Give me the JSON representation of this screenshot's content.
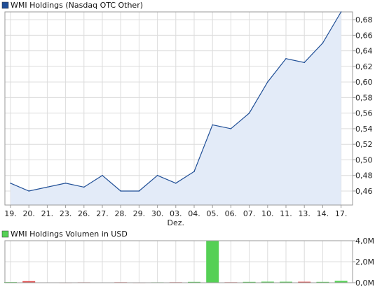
{
  "colors": {
    "price_line": "#1f4e96",
    "price_fill": "#e3ebf8",
    "price_legend": "#1f4e96",
    "volume_legend": "#55d055",
    "volume_up": "#55d055",
    "volume_down": "#e05050",
    "grid": "#dcdcdc",
    "frame": "#999999"
  },
  "chart_data": [
    {
      "type": "area",
      "legend": "WMI Holdings (Nasdaq OTC Other)",
      "x_ticks": [
        "19.",
        "20.",
        "21.",
        "23.",
        "26.",
        "27.",
        "28.",
        "29.",
        "30.",
        "03.",
        "04.",
        "05.",
        "06.",
        "07.",
        "10.",
        "11.",
        "13.",
        "14.",
        "17."
      ],
      "x_month_label": "Dez.",
      "x_month_label_under": "03.",
      "y_ticks": [
        "0,46",
        "0,48",
        "0,50",
        "0,52",
        "0,54",
        "0,56",
        "0,58",
        "0,60",
        "0,62",
        "0,64",
        "0,66",
        "0,68"
      ],
      "ylim": [
        0.442,
        0.69
      ],
      "grid": true,
      "points": [
        {
          "x": "19.",
          "y": 0.47
        },
        {
          "x": "20.",
          "y": 0.46
        },
        {
          "x": "23.",
          "y": 0.47
        },
        {
          "x": "26.",
          "y": 0.465
        },
        {
          "x": "27.",
          "y": 0.48
        },
        {
          "x": "28.",
          "y": 0.46
        },
        {
          "x": "29.",
          "y": 0.46
        },
        {
          "x": "30.",
          "y": 0.48
        },
        {
          "x": "03.",
          "y": 0.47
        },
        {
          "x": "04.",
          "y": 0.485
        },
        {
          "x": "05.",
          "y": 0.545
        },
        {
          "x": "06.",
          "y": 0.54
        },
        {
          "x": "07.",
          "y": 0.56
        },
        {
          "x": "10.",
          "y": 0.6
        },
        {
          "x": "11.",
          "y": 0.63
        },
        {
          "x": "13.",
          "y": 0.625
        },
        {
          "x": "14.",
          "y": 0.65
        },
        {
          "x": "17.",
          "y": 0.69
        }
      ]
    },
    {
      "type": "bar",
      "legend": "WMI Holdings Volumen in USD",
      "y_ticks": [
        "0,0M",
        "2,0M",
        "4,0M"
      ],
      "ylim": [
        0,
        4000000
      ],
      "grid": true,
      "bars": [
        {
          "x": "19.",
          "value": 60000,
          "direction": "up"
        },
        {
          "x": "20.",
          "value": 150000,
          "direction": "down"
        },
        {
          "x": "23.",
          "value": 30000,
          "direction": "down"
        },
        {
          "x": "26.",
          "value": 40000,
          "direction": "down"
        },
        {
          "x": "28.",
          "value": 50000,
          "direction": "down"
        },
        {
          "x": "29.",
          "value": 30000,
          "direction": "down"
        },
        {
          "x": "30.",
          "value": 40000,
          "direction": "up"
        },
        {
          "x": "03.",
          "value": 50000,
          "direction": "down"
        },
        {
          "x": "04.",
          "value": 80000,
          "direction": "up"
        },
        {
          "x": "05.",
          "value": 4000000,
          "direction": "up"
        },
        {
          "x": "06.",
          "value": 50000,
          "direction": "down"
        },
        {
          "x": "07.",
          "value": 80000,
          "direction": "up"
        },
        {
          "x": "10.",
          "value": 100000,
          "direction": "up"
        },
        {
          "x": "11.",
          "value": 90000,
          "direction": "up"
        },
        {
          "x": "13.",
          "value": 90000,
          "direction": "down"
        },
        {
          "x": "14.",
          "value": 80000,
          "direction": "up"
        },
        {
          "x": "17.",
          "value": 170000,
          "direction": "up"
        }
      ]
    }
  ]
}
